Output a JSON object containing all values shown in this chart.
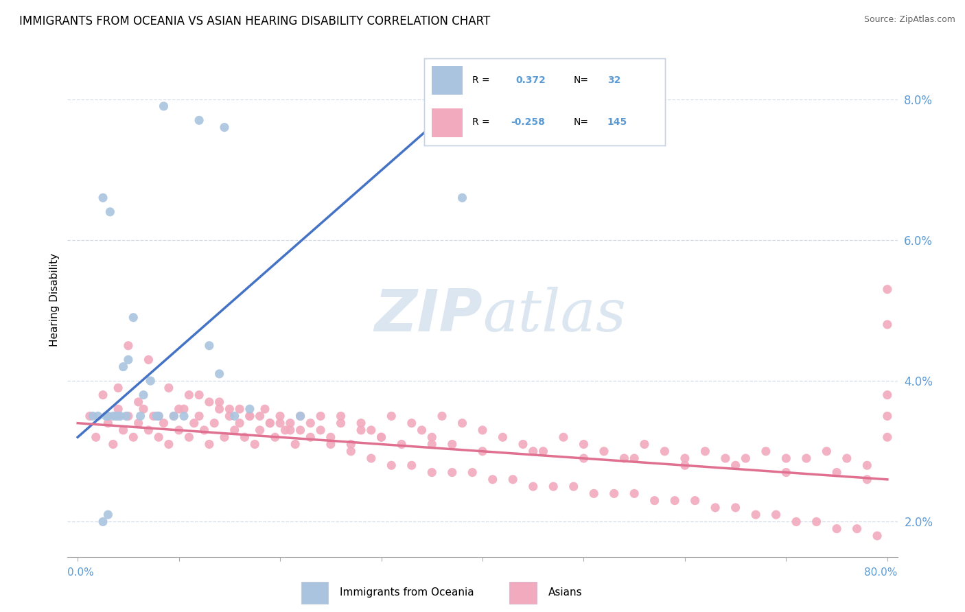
{
  "title": "IMMIGRANTS FROM OCEANIA VS ASIAN HEARING DISABILITY CORRELATION CHART",
  "source": "Source: ZipAtlas.com",
  "ylabel": "Hearing Disability",
  "blue_color": "#aac4df",
  "pink_color": "#f2aabe",
  "blue_line_color": "#4472c4",
  "pink_line_color": "#e07090",
  "watermark_color": "#dce6f0",
  "blue_r": "0.372",
  "blue_n": "32",
  "pink_r": "-0.258",
  "pink_n": "145",
  "ytick_color": "#5b9bd5",
  "xtick_color": "#5b9bd5",
  "blue_x": [
    8.5,
    12.0,
    14.5,
    2.5,
    3.2,
    1.5,
    2.8,
    4.2,
    5.5,
    3.8,
    2.0,
    4.5,
    6.2,
    7.8,
    3.5,
    5.0,
    6.5,
    8.0,
    9.5,
    3.0,
    4.8,
    7.2,
    10.5,
    13.0,
    4.0,
    14.0,
    15.5,
    17.0,
    3.0,
    2.5,
    22.0,
    38.0
  ],
  "blue_y": [
    7.9,
    7.7,
    7.6,
    6.6,
    6.4,
    3.5,
    3.5,
    3.5,
    4.9,
    3.5,
    3.5,
    4.2,
    3.5,
    3.5,
    3.5,
    4.3,
    3.8,
    3.5,
    3.5,
    3.5,
    3.5,
    4.0,
    3.5,
    4.5,
    3.5,
    4.1,
    3.5,
    3.6,
    2.1,
    2.0,
    3.5,
    6.6
  ],
  "pink_x": [
    1.2,
    1.8,
    2.5,
    3.0,
    3.5,
    4.0,
    4.5,
    5.0,
    5.5,
    6.0,
    6.5,
    7.0,
    7.5,
    8.0,
    8.5,
    9.0,
    9.5,
    10.0,
    10.5,
    11.0,
    11.5,
    12.0,
    12.5,
    13.0,
    13.5,
    14.0,
    14.5,
    15.0,
    15.5,
    16.0,
    16.5,
    17.0,
    17.5,
    18.0,
    18.5,
    19.0,
    19.5,
    20.0,
    20.5,
    21.0,
    21.5,
    22.0,
    23.0,
    24.0,
    25.0,
    26.0,
    27.0,
    28.0,
    29.0,
    30.0,
    31.0,
    32.0,
    33.0,
    34.0,
    35.0,
    36.0,
    37.0,
    38.0,
    40.0,
    42.0,
    44.0,
    46.0,
    48.0,
    50.0,
    52.0,
    54.0,
    56.0,
    58.0,
    60.0,
    62.0,
    64.0,
    66.0,
    68.0,
    70.0,
    72.0,
    74.0,
    76.0,
    78.0,
    4.0,
    6.0,
    8.0,
    10.0,
    12.0,
    14.0,
    16.0,
    18.0,
    20.0,
    22.0,
    24.0,
    26.0,
    28.0,
    30.0,
    35.0,
    40.0,
    45.0,
    50.0,
    55.0,
    60.0,
    65.0,
    70.0,
    75.0,
    78.0,
    5.0,
    7.0,
    9.0,
    11.0,
    13.0,
    15.0,
    17.0,
    19.0,
    21.0,
    23.0,
    25.0,
    27.0,
    29.0,
    31.0,
    33.0,
    35.0,
    37.0,
    39.0,
    41.0,
    43.0,
    45.0,
    47.0,
    49.0,
    51.0,
    53.0,
    55.0,
    57.0,
    59.0,
    61.0,
    63.0,
    65.0,
    67.0,
    69.0,
    71.0,
    73.0,
    75.0,
    77.0,
    79.0,
    80.0,
    80.0,
    80.0,
    80.0,
    80.0
  ],
  "pink_y": [
    3.5,
    3.2,
    3.8,
    3.4,
    3.1,
    3.6,
    3.3,
    3.5,
    3.2,
    3.4,
    3.6,
    3.3,
    3.5,
    3.2,
    3.4,
    3.1,
    3.5,
    3.3,
    3.6,
    3.2,
    3.4,
    3.5,
    3.3,
    3.1,
    3.4,
    3.6,
    3.2,
    3.5,
    3.3,
    3.4,
    3.2,
    3.5,
    3.1,
    3.3,
    3.6,
    3.4,
    3.2,
    3.5,
    3.3,
    3.4,
    3.1,
    3.5,
    3.4,
    3.3,
    3.2,
    3.5,
    3.1,
    3.4,
    3.3,
    3.2,
    3.5,
    3.1,
    3.4,
    3.3,
    3.2,
    3.5,
    3.1,
    3.4,
    3.3,
    3.2,
    3.1,
    3.0,
    3.2,
    3.1,
    3.0,
    2.9,
    3.1,
    3.0,
    2.9,
    3.0,
    2.9,
    2.9,
    3.0,
    2.9,
    2.9,
    3.0,
    2.9,
    2.8,
    3.9,
    3.7,
    3.5,
    3.6,
    3.8,
    3.7,
    3.6,
    3.5,
    3.4,
    3.3,
    3.5,
    3.4,
    3.3,
    3.2,
    3.1,
    3.0,
    3.0,
    2.9,
    2.9,
    2.8,
    2.8,
    2.7,
    2.7,
    2.6,
    4.5,
    4.3,
    3.9,
    3.8,
    3.7,
    3.6,
    3.5,
    3.4,
    3.3,
    3.2,
    3.1,
    3.0,
    2.9,
    2.8,
    2.8,
    2.7,
    2.7,
    2.7,
    2.6,
    2.6,
    2.5,
    2.5,
    2.5,
    2.4,
    2.4,
    2.4,
    2.3,
    2.3,
    2.3,
    2.2,
    2.2,
    2.1,
    2.1,
    2.0,
    2.0,
    1.9,
    1.9,
    1.8,
    4.8,
    5.3,
    3.8,
    3.5,
    3.2
  ]
}
